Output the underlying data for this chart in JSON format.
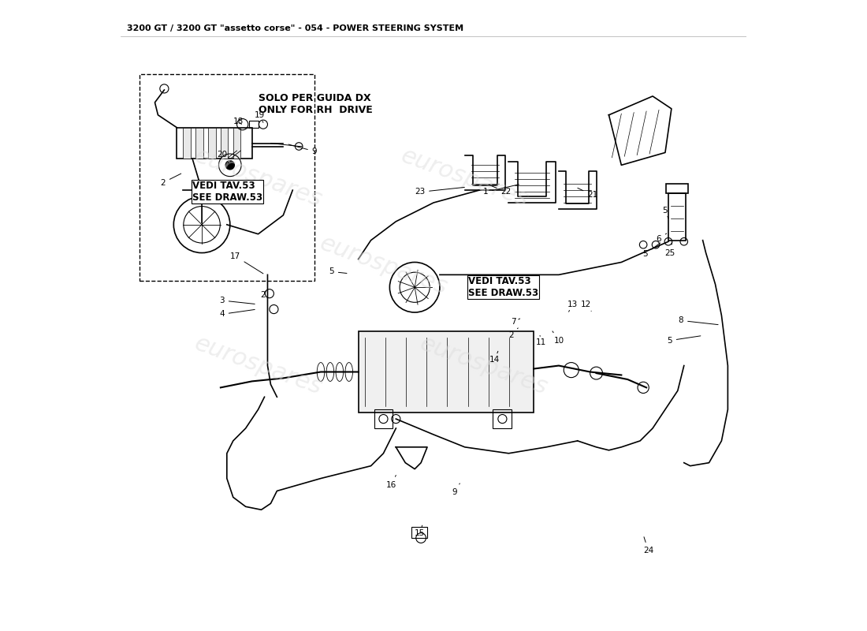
{
  "title": "3200 GT / 3200 GT \"assetto corse\" - 054 - POWER STEERING SYSTEM",
  "title_fontsize": 8,
  "bg_color": "#ffffff",
  "drawing_color": "#000000",
  "note1": "SOLO PER GUIDA DX\nONLY FOR RH  DRIVE",
  "note2": "VEDI TAV.53\nSEE DRAW.53",
  "note3": "VEDI TAV.53\nSEE DRAW.53"
}
